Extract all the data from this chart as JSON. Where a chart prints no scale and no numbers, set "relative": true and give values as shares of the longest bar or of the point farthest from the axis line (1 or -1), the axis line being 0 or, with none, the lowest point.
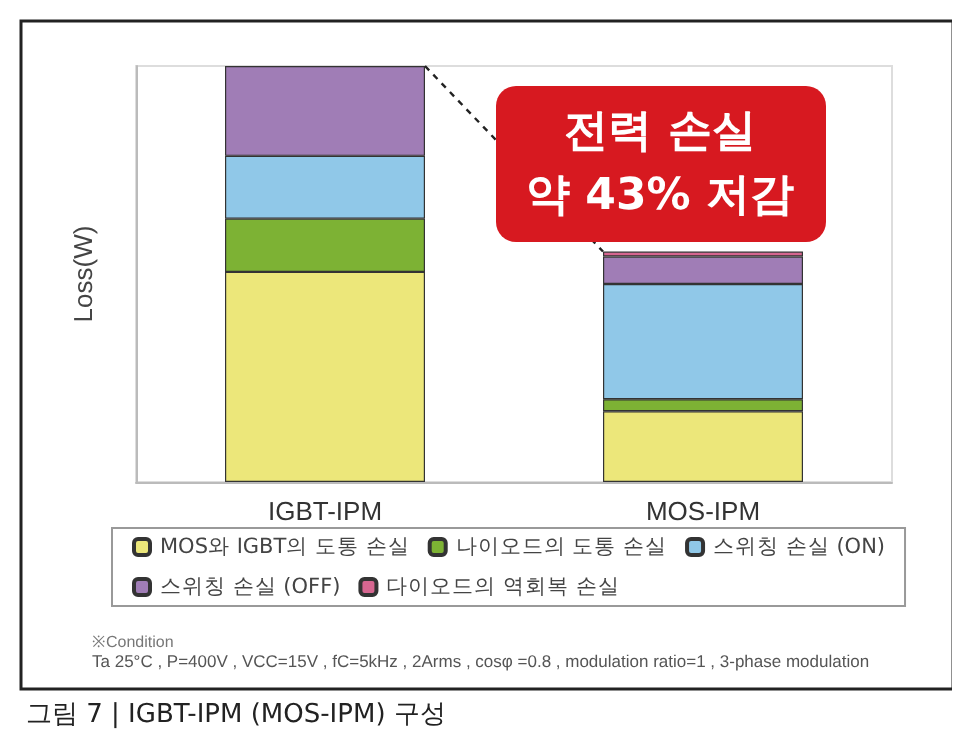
{
  "chart_data": {
    "type": "bar",
    "stacked": true,
    "relative": true,
    "title": "그림 7 | IGBT-IPM (MOS-IPM) 구성",
    "ylabel": "Loss(W)",
    "categories": [
      "IGBT-IPM",
      "MOS-IPM"
    ],
    "series": [
      {
        "name": "MOS와 IGBT의 도통 손실",
        "color": "#ece77a",
        "values": [
          0.505,
          0.17
        ]
      },
      {
        "name": "나이오드의 도통 손실",
        "color": "#7db234",
        "values": [
          0.128,
          0.029
        ]
      },
      {
        "name": "스위칭 손실 (ON)",
        "color": "#90c8e8",
        "values": [
          0.151,
          0.277
        ]
      },
      {
        "name": "스위칭 손실 (OFF)",
        "color": "#a07db6",
        "values": [
          0.216,
          0.066
        ]
      },
      {
        "name": "다이오드의 역회복 손실",
        "color": "#d66690",
        "values": [
          null,
          0.012
        ]
      }
    ],
    "legend": "bottom",
    "grid": false,
    "annotations": [
      "전력 손실\n약 43% 저감",
      "※Condition",
      "Ta 25°C , P=400V , VCC=15V , fC=5kHz , 2Arms , cosφ =0.8 , modulation ratio=1 , 3-phase modulation"
    ]
  }
}
